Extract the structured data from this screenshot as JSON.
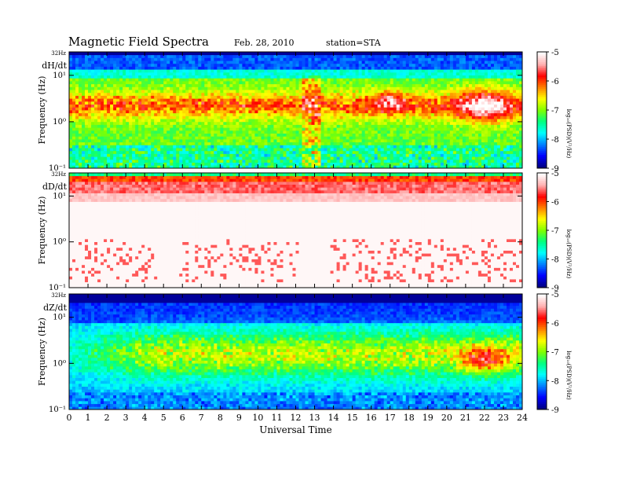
{
  "header": {
    "title": "Magnetic  Field  Spectra",
    "date": "Feb. 28, 2010",
    "station": "station=STA"
  },
  "colorbar": {
    "label": "log₁₀(PSD)(V²/Hz)",
    "ticks": [
      "-5",
      "-6",
      "-7",
      "-8",
      "-9"
    ],
    "colors": [
      "#000080",
      "#0000ff",
      "#0080ff",
      "#00ffff",
      "#00ff80",
      "#80ff00",
      "#ffff00",
      "#ff8000",
      "#ff0000",
      "#ffb0b0",
      "#ffffff"
    ]
  },
  "chart_data": [
    {
      "type": "heatmap",
      "panel_label": "dH/dt",
      "ylabel": "Frequency  (Hz)",
      "yscale": "log",
      "yticks": [
        "10⁻¹",
        "10⁰",
        "10¹"
      ],
      "ytop_label": "32Hz",
      "ylim_hz": [
        0.1,
        32
      ],
      "xlim_ut": [
        0,
        24
      ],
      "zlim_log_psd": [
        -9,
        -5
      ],
      "dominant_features": "dark-blue band near 32 Hz; blue band 10-20 Hz; green/yellow 0.3-10 Hz; red patches near 2 Hz around 17 UT and 21-23 UT; broadband red spikes near 12.5-13 UT"
    },
    {
      "type": "heatmap",
      "panel_label": "dD/dt",
      "ylabel": "Frequency  (Hz)",
      "yscale": "log",
      "yticks": [
        "10⁻¹",
        "10⁰",
        "10¹"
      ],
      "ytop_label": "32Hz",
      "ylim_hz": [
        0.1,
        32
      ],
      "xlim_ut": [
        0,
        24
      ],
      "zlim_log_psd": [
        -9,
        -5
      ],
      "dominant_features": "saturated red/white band 10-32 Hz; mostly white below with scattered red below 1 Hz"
    },
    {
      "type": "heatmap",
      "panel_label": "dZ/dt",
      "ylabel": "Frequency  (Hz)",
      "yscale": "log",
      "yticks": [
        "10⁻¹",
        "10⁰",
        "10¹"
      ],
      "ytop_label": "32Hz",
      "ylim_hz": [
        0.1,
        32
      ],
      "xlim_ut": [
        0,
        24
      ],
      "zlim_log_psd": [
        -9,
        -5
      ],
      "dominant_features": "dark blue above 10 Hz; green band 0.5-5 Hz after ~4 UT; red patch near 1 Hz at 21-23 UT"
    }
  ],
  "xaxis": {
    "label": "Universal Time",
    "ticks": [
      "0",
      "1",
      "2",
      "3",
      "4",
      "5",
      "6",
      "7",
      "8",
      "9",
      "10",
      "11",
      "12",
      "13",
      "14",
      "15",
      "16",
      "17",
      "18",
      "19",
      "20",
      "21",
      "22",
      "23",
      "24"
    ]
  }
}
